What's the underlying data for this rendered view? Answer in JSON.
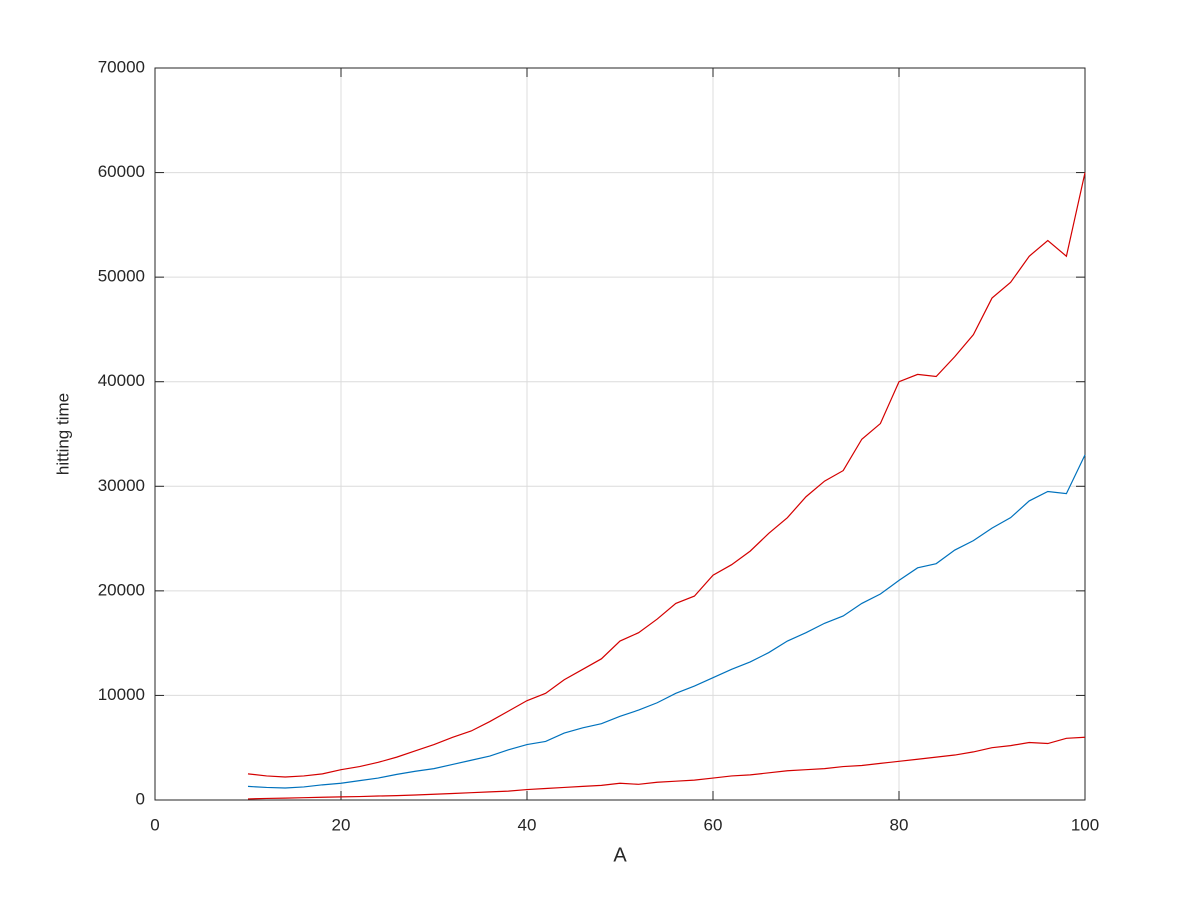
{
  "chart_data": {
    "type": "line",
    "x_label": "A",
    "y_label": "hitting time",
    "x": [
      10,
      12,
      14,
      16,
      18,
      20,
      22,
      24,
      26,
      28,
      30,
      32,
      34,
      36,
      38,
      40,
      42,
      44,
      46,
      48,
      50,
      52,
      54,
      56,
      58,
      60,
      62,
      64,
      66,
      68,
      70,
      72,
      74,
      76,
      78,
      80,
      82,
      84,
      86,
      88,
      90,
      92,
      94,
      96,
      98,
      100
    ],
    "series": [
      {
        "color": "#d40000",
        "values": [
          2500,
          2300,
          2200,
          2300,
          2500,
          2900,
          3200,
          3600,
          4100,
          4700,
          5300,
          6000,
          6600,
          7500,
          8500,
          9500,
          10200,
          11500,
          12500,
          13500,
          15200,
          16000,
          17300,
          18800,
          19500,
          21500,
          22500,
          23800,
          25500,
          27000,
          29000,
          30500,
          31500,
          34500,
          36000,
          40000,
          40700,
          40500,
          42400,
          44500,
          48000,
          49500,
          52000,
          53500,
          52000,
          60000
        ]
      },
      {
        "color": "#0072bd",
        "values": [
          1300,
          1200,
          1150,
          1250,
          1450,
          1600,
          1850,
          2100,
          2450,
          2750,
          3000,
          3400,
          3800,
          4200,
          4800,
          5300,
          5600,
          6400,
          6900,
          7300,
          8000,
          8600,
          9300,
          10200,
          10900,
          11700,
          12500,
          13200,
          14100,
          15200,
          16000,
          16900,
          17600,
          18800,
          19700,
          21000,
          22200,
          22600,
          23900,
          24800,
          26000,
          27000,
          28600,
          29500,
          29300,
          33000
        ]
      },
      {
        "color": "#d40000",
        "values": [
          100,
          150,
          180,
          220,
          260,
          300,
          330,
          380,
          420,
          480,
          550,
          620,
          700,
          780,
          850,
          1000,
          1100,
          1200,
          1300,
          1400,
          1600,
          1500,
          1700,
          1800,
          1900,
          2100,
          2300,
          2400,
          2600,
          2800,
          2900,
          3000,
          3200,
          3300,
          3500,
          3700,
          3900,
          4100,
          4300,
          4600,
          5000,
          5200,
          5500,
          5400,
          5900,
          6000
        ]
      }
    ],
    "xlim": [
      0,
      100
    ],
    "xticks": [
      0,
      20,
      40,
      60,
      80,
      100
    ],
    "ylim": [
      0,
      70000
    ],
    "yticks": [
      0,
      10000,
      20000,
      30000,
      40000,
      50000,
      60000,
      70000
    ],
    "grid": true
  }
}
